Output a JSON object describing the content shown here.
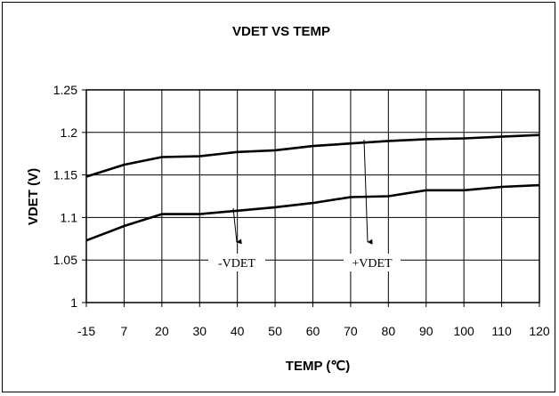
{
  "chart_data": {
    "type": "line",
    "title": "VDET VS TEMP",
    "xlabel": "TEMP (℃)",
    "ylabel": "VDET (V)",
    "categories": [
      "-15",
      "7",
      "20",
      "30",
      "40",
      "50",
      "60",
      "70",
      "80",
      "90",
      "100",
      "110",
      "120"
    ],
    "ylim": [
      1,
      1.25
    ],
    "yticks": [
      "1",
      "1.05",
      "1.1",
      "1.15",
      "1.2",
      "1.25"
    ],
    "grid": true,
    "series": [
      {
        "name": "+VDET",
        "values": [
          1.148,
          1.162,
          1.171,
          1.172,
          1.177,
          1.179,
          1.184,
          1.187,
          1.19,
          1.192,
          1.193,
          1.195,
          1.197
        ]
      },
      {
        "name": "-VDET",
        "values": [
          1.073,
          1.09,
          1.104,
          1.104,
          1.108,
          1.112,
          1.117,
          1.124,
          1.125,
          1.132,
          1.132,
          1.136,
          1.138
        ]
      }
    ],
    "annotations": [
      {
        "text": "+VDET",
        "series": "+VDET"
      },
      {
        "text": "-VDET",
        "series": "-VDET"
      }
    ]
  }
}
